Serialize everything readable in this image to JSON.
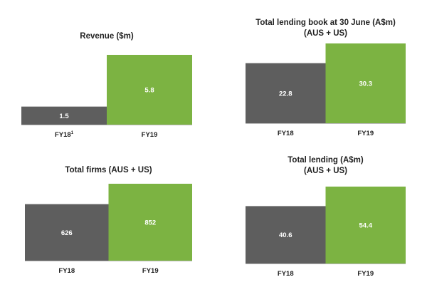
{
  "colors": {
    "fy18": "#5e5e5e",
    "fy19": "#7cb342",
    "axis": "#bbbbbb"
  },
  "chart_data": [
    {
      "type": "bar",
      "title": "Revenue ($m)",
      "categories": [
        "FY18",
        "FY19"
      ],
      "category_superscripts": [
        "1",
        ""
      ],
      "values": [
        1.5,
        5.8
      ],
      "value_labels": [
        "1.5",
        "5.8"
      ]
    },
    {
      "type": "bar",
      "title": "Total lending book at 30 June (A$m)\n(AUS + US)",
      "categories": [
        "FY18",
        "FY19"
      ],
      "category_superscripts": [
        "",
        ""
      ],
      "values": [
        22.8,
        30.3
      ],
      "value_labels": [
        "22.8",
        "30.3"
      ]
    },
    {
      "type": "bar",
      "title": "Total firms (AUS + US)",
      "categories": [
        "FY18",
        "FY19"
      ],
      "category_superscripts": [
        "",
        ""
      ],
      "values": [
        626,
        852
      ],
      "value_labels": [
        "626",
        "852"
      ]
    },
    {
      "type": "bar",
      "title": "Total lending (A$m)\n(AUS + US)",
      "categories": [
        "FY18",
        "FY19"
      ],
      "category_superscripts": [
        "",
        ""
      ],
      "values": [
        40.6,
        54.4
      ],
      "value_labels": [
        "40.6",
        "54.4"
      ]
    }
  ]
}
